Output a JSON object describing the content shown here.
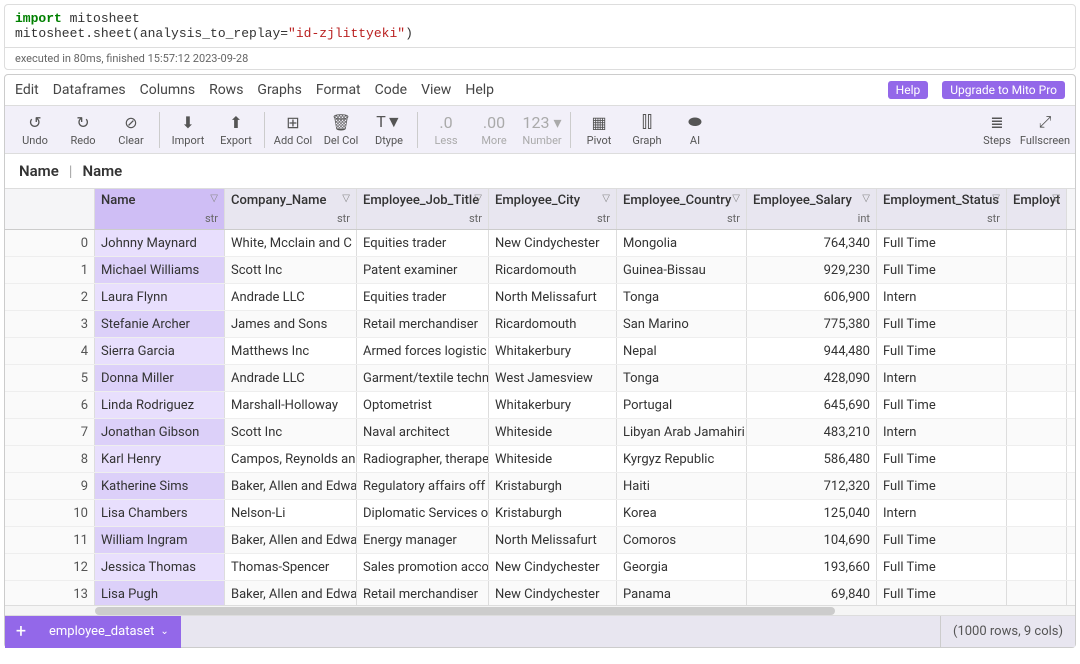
{
  "code": {
    "line1_kw": "import",
    "line1_rest": " mitosheet",
    "line2_pre": "mitosheet.sheet(analysis_to_replay=",
    "line2_str": "\"id-zjlittyeki\"",
    "line2_post": ")",
    "exec": "executed in 80ms, finished 15:57:12 2023-09-28"
  },
  "menu": [
    "Edit",
    "Dataframes",
    "Columns",
    "Rows",
    "Graphs",
    "Format",
    "Code",
    "View",
    "Help"
  ],
  "help_btn": "Help",
  "upgrade_btn": "Upgrade to Mito Pro",
  "tools": [
    {
      "icon": "↺",
      "label": "Undo"
    },
    {
      "icon": "↻",
      "label": "Redo"
    },
    {
      "icon": "⊘",
      "label": "Clear"
    },
    {
      "sep": true
    },
    {
      "icon": "⬇",
      "label": "Import"
    },
    {
      "icon": "⬆",
      "label": "Export"
    },
    {
      "sep": true
    },
    {
      "icon": "⊞",
      "label": "Add Col"
    },
    {
      "icon": "🗑",
      "label": "Del Col"
    },
    {
      "icon": "T▼",
      "label": "Dtype"
    },
    {
      "sep": true
    },
    {
      "icon": ".0",
      "label": "Less",
      "disabled": true
    },
    {
      "icon": ".00",
      "label": "More",
      "disabled": true
    },
    {
      "icon": "123 ▾",
      "label": "Number",
      "disabled": true
    },
    {
      "sep": true
    },
    {
      "icon": "▦",
      "label": "Pivot"
    },
    {
      "icon": "⫿⫿",
      "label": "Graph"
    },
    {
      "icon": "⬬",
      "label": "AI"
    }
  ],
  "tools_right": [
    {
      "icon": "≣",
      "label": "Steps"
    },
    {
      "icon": "⤢",
      "label": "Fullscreen"
    }
  ],
  "breadcrumb": [
    "Name",
    "Name"
  ],
  "columns": [
    {
      "title": "",
      "type": "",
      "w": "w-idx",
      "index": true
    },
    {
      "title": "Name",
      "type": "str",
      "w": "w-name",
      "name": true
    },
    {
      "title": "Company_Name",
      "type": "str",
      "w": "w-comp"
    },
    {
      "title": "Employee_Job_Title",
      "type": "str",
      "w": "w-job"
    },
    {
      "title": "Employee_City",
      "type": "str",
      "w": "w-city"
    },
    {
      "title": "Employee_Country",
      "type": "str",
      "w": "w-country"
    },
    {
      "title": "Employee_Salary",
      "type": "int",
      "w": "w-salary"
    },
    {
      "title": "Employment_Status",
      "type": "str",
      "w": "w-status"
    },
    {
      "title": "Employting",
      "type": "",
      "w": "w-last"
    }
  ],
  "rows": [
    {
      "i": 0,
      "n": "Johnny Maynard",
      "c": "White, Mcclain and C",
      "j": "Equities trader",
      "city": "New Cindychester",
      "co": "Mongolia",
      "s": "764,340",
      "st": "Full Time"
    },
    {
      "i": 1,
      "n": "Michael Williams",
      "c": "Scott Inc",
      "j": "Patent examiner",
      "city": "Ricardomouth",
      "co": "Guinea-Bissau",
      "s": "929,230",
      "st": "Full Time"
    },
    {
      "i": 2,
      "n": "Laura Flynn",
      "c": "Andrade LLC",
      "j": "Equities trader",
      "city": "North Melissafurt",
      "co": "Tonga",
      "s": "606,900",
      "st": "Intern"
    },
    {
      "i": 3,
      "n": "Stefanie Archer",
      "c": "James and Sons",
      "j": "Retail merchandiser",
      "city": "Ricardomouth",
      "co": "San Marino",
      "s": "775,380",
      "st": "Full Time"
    },
    {
      "i": 4,
      "n": "Sierra Garcia",
      "c": "Matthews Inc",
      "j": "Armed forces logistic",
      "city": "Whitakerbury",
      "co": "Nepal",
      "s": "944,480",
      "st": "Full Time"
    },
    {
      "i": 5,
      "n": "Donna Miller",
      "c": "Andrade LLC",
      "j": "Garment/textile techn",
      "city": "West Jamesview",
      "co": "Tonga",
      "s": "428,090",
      "st": "Intern"
    },
    {
      "i": 6,
      "n": "Linda Rodriguez",
      "c": "Marshall-Holloway",
      "j": "Optometrist",
      "city": "Whitakerbury",
      "co": "Portugal",
      "s": "645,690",
      "st": "Full Time"
    },
    {
      "i": 7,
      "n": "Jonathan Gibson",
      "c": "Scott Inc",
      "j": "Naval architect",
      "city": "Whiteside",
      "co": "Libyan Arab Jamahiri",
      "s": "483,210",
      "st": "Intern"
    },
    {
      "i": 8,
      "n": "Karl Henry",
      "c": "Campos, Reynolds an",
      "j": "Radiographer, therape",
      "city": "Whiteside",
      "co": "Kyrgyz Republic",
      "s": "586,480",
      "st": "Full Time"
    },
    {
      "i": 9,
      "n": "Katherine Sims",
      "c": "Baker, Allen and Edwa",
      "j": "Regulatory affairs off",
      "city": "Kristaburgh",
      "co": "Haiti",
      "s": "712,320",
      "st": "Full Time"
    },
    {
      "i": 10,
      "n": "Lisa Chambers",
      "c": "Nelson-Li",
      "j": "Diplomatic Services o",
      "city": "Kristaburgh",
      "co": "Korea",
      "s": "125,040",
      "st": "Intern"
    },
    {
      "i": 11,
      "n": "William Ingram",
      "c": "Baker, Allen and Edwa",
      "j": "Energy manager",
      "city": "North Melissafurt",
      "co": "Comoros",
      "s": "104,690",
      "st": "Full Time"
    },
    {
      "i": 12,
      "n": "Jessica Thomas",
      "c": "Thomas-Spencer",
      "j": "Sales promotion acco",
      "city": "New Cindychester",
      "co": "Georgia",
      "s": "193,660",
      "st": "Full Time"
    },
    {
      "i": 13,
      "n": "Lisa Pugh",
      "c": "Baker, Allen and Edwa",
      "j": "Retail merchandiser",
      "city": "New Cindychester",
      "co": "Panama",
      "s": "69,840",
      "st": "Full Time"
    }
  ],
  "sheet_tab": "employee_dataset",
  "stats": "(1000 rows, 9 cols)"
}
